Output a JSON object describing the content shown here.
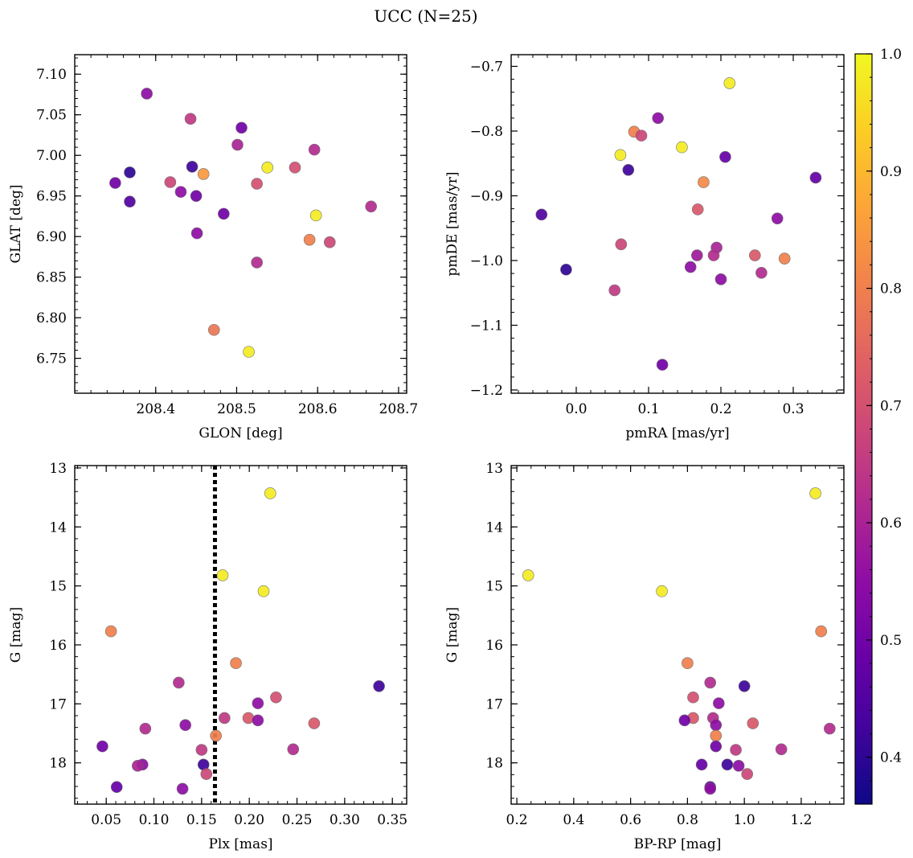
{
  "title": "UCC (N=25)",
  "colormap": "plasma",
  "colorbar": {
    "range": [
      0.36,
      1.0
    ],
    "ticks": [
      0.4,
      0.5,
      0.6,
      0.7,
      0.8,
      0.9,
      1.0
    ],
    "tick_labels": [
      "0.4",
      "0.5",
      "0.6",
      "0.7",
      "0.8",
      "0.9",
      "1.0"
    ]
  },
  "chart_data": [
    {
      "type": "scatter",
      "xlabel": "GLON [deg]",
      "ylabel": "GLAT [deg]",
      "xlim": [
        208.3,
        208.71
      ],
      "ylim": [
        6.707,
        7.124
      ],
      "xticks": [
        208.4,
        208.5,
        208.6,
        208.7
      ],
      "xtick_labels": [
        "208.4",
        "208.5",
        "208.6",
        "208.7"
      ],
      "yticks": [
        6.75,
        6.8,
        6.85,
        6.9,
        6.95,
        7.0,
        7.05,
        7.1
      ],
      "ytick_labels": [
        "6.75",
        "6.80",
        "6.85",
        "6.90",
        "6.95",
        "7.00",
        "7.05",
        "7.10"
      ],
      "invert_y": false,
      "grid": false,
      "points": [
        {
          "x": 208.389,
          "y": 7.076,
          "c": 0.55
        },
        {
          "x": 208.443,
          "y": 7.045,
          "c": 0.65
        },
        {
          "x": 208.506,
          "y": 7.034,
          "c": 0.5
        },
        {
          "x": 208.501,
          "y": 7.013,
          "c": 0.6
        },
        {
          "x": 208.596,
          "y": 7.007,
          "c": 0.62
        },
        {
          "x": 208.572,
          "y": 6.985,
          "c": 0.7
        },
        {
          "x": 208.445,
          "y": 6.986,
          "c": 0.42
        },
        {
          "x": 208.538,
          "y": 6.985,
          "c": 0.98
        },
        {
          "x": 208.368,
          "y": 6.979,
          "c": 0.4
        },
        {
          "x": 208.459,
          "y": 6.977,
          "c": 0.85
        },
        {
          "x": 208.35,
          "y": 6.966,
          "c": 0.5
        },
        {
          "x": 208.418,
          "y": 6.967,
          "c": 0.68
        },
        {
          "x": 208.525,
          "y": 6.965,
          "c": 0.7
        },
        {
          "x": 208.431,
          "y": 6.955,
          "c": 0.55
        },
        {
          "x": 208.45,
          "y": 6.95,
          "c": 0.5
        },
        {
          "x": 208.368,
          "y": 6.943,
          "c": 0.45
        },
        {
          "x": 208.666,
          "y": 6.937,
          "c": 0.62
        },
        {
          "x": 208.484,
          "y": 6.928,
          "c": 0.5
        },
        {
          "x": 208.598,
          "y": 6.926,
          "c": 0.98
        },
        {
          "x": 208.451,
          "y": 6.904,
          "c": 0.55
        },
        {
          "x": 208.59,
          "y": 6.896,
          "c": 0.8
        },
        {
          "x": 208.615,
          "y": 6.893,
          "c": 0.68
        },
        {
          "x": 208.525,
          "y": 6.868,
          "c": 0.62
        },
        {
          "x": 208.472,
          "y": 6.785,
          "c": 0.78
        },
        {
          "x": 208.515,
          "y": 6.758,
          "c": 0.98
        }
      ]
    },
    {
      "type": "scatter",
      "xlabel": "pmRA [mas/yr]",
      "ylabel": "pmDE [mas/yr]",
      "xlim": [
        -0.09,
        0.37
      ],
      "ylim": [
        -1.205,
        -0.682
      ],
      "xticks": [
        0.0,
        0.1,
        0.2,
        0.3
      ],
      "xtick_labels": [
        "0.0",
        "0.1",
        "0.2",
        "0.3"
      ],
      "yticks": [
        -1.2,
        -1.1,
        -1.0,
        -0.9,
        -0.8,
        -0.7
      ],
      "ytick_labels": [
        "−1.2",
        "−1.1",
        "−1.0",
        "−0.9",
        "−0.8",
        "−0.7"
      ],
      "invert_y": false,
      "grid": false,
      "points": [
        {
          "x": 0.212,
          "y": -0.726,
          "c": 0.98
        },
        {
          "x": 0.113,
          "y": -0.78,
          "c": 0.55
        },
        {
          "x": 0.08,
          "y": -0.801,
          "c": 0.8
        },
        {
          "x": 0.09,
          "y": -0.807,
          "c": 0.68
        },
        {
          "x": 0.146,
          "y": -0.825,
          "c": 0.98
        },
        {
          "x": 0.061,
          "y": -0.837,
          "c": 0.98
        },
        {
          "x": 0.206,
          "y": -0.84,
          "c": 0.48
        },
        {
          "x": 0.072,
          "y": -0.86,
          "c": 0.42
        },
        {
          "x": 0.331,
          "y": -0.872,
          "c": 0.48
        },
        {
          "x": 0.176,
          "y": -0.879,
          "c": 0.82
        },
        {
          "x": 0.168,
          "y": -0.921,
          "c": 0.72
        },
        {
          "x": -0.048,
          "y": -0.929,
          "c": 0.45
        },
        {
          "x": 0.278,
          "y": -0.935,
          "c": 0.55
        },
        {
          "x": 0.062,
          "y": -0.975,
          "c": 0.68
        },
        {
          "x": 0.194,
          "y": -0.98,
          "c": 0.6
        },
        {
          "x": 0.167,
          "y": -0.992,
          "c": 0.58
        },
        {
          "x": 0.19,
          "y": -0.992,
          "c": 0.62
        },
        {
          "x": 0.247,
          "y": -0.992,
          "c": 0.72
        },
        {
          "x": 0.288,
          "y": -0.997,
          "c": 0.8
        },
        {
          "x": 0.158,
          "y": -1.01,
          "c": 0.55
        },
        {
          "x": -0.014,
          "y": -1.014,
          "c": 0.4
        },
        {
          "x": 0.256,
          "y": -1.019,
          "c": 0.62
        },
        {
          "x": 0.2,
          "y": -1.029,
          "c": 0.55
        },
        {
          "x": 0.053,
          "y": -1.046,
          "c": 0.65
        },
        {
          "x": 0.119,
          "y": -1.161,
          "c": 0.5
        }
      ]
    },
    {
      "type": "scatter",
      "xlabel": "Plx [mas]",
      "ylabel": "G [mag]",
      "xlim": [
        0.017,
        0.365
      ],
      "ylim": [
        18.7,
        12.96
      ],
      "xticks": [
        0.05,
        0.1,
        0.15,
        0.2,
        0.25,
        0.3,
        0.35
      ],
      "xtick_labels": [
        "0.05",
        "0.10",
        "0.15",
        "0.20",
        "0.25",
        "0.30",
        "0.35"
      ],
      "yticks": [
        13,
        14,
        15,
        16,
        17,
        18
      ],
      "ytick_labels": [
        "13",
        "14",
        "15",
        "16",
        "17",
        "18"
      ],
      "invert_y": true,
      "grid": false,
      "vline": {
        "x": 0.164,
        "style": "dotted",
        "color": "#000000"
      },
      "points": [
        {
          "x": 0.222,
          "y": 13.43,
          "c": 0.98
        },
        {
          "x": 0.172,
          "y": 14.82,
          "c": 0.98
        },
        {
          "x": 0.215,
          "y": 15.09,
          "c": 0.98
        },
        {
          "x": 0.055,
          "y": 15.77,
          "c": 0.8
        },
        {
          "x": 0.186,
          "y": 16.31,
          "c": 0.8
        },
        {
          "x": 0.126,
          "y": 16.64,
          "c": 0.62
        },
        {
          "x": 0.336,
          "y": 16.7,
          "c": 0.42
        },
        {
          "x": 0.228,
          "y": 16.89,
          "c": 0.7
        },
        {
          "x": 0.209,
          "y": 16.99,
          "c": 0.55
        },
        {
          "x": 0.174,
          "y": 17.24,
          "c": 0.65
        },
        {
          "x": 0.199,
          "y": 17.24,
          "c": 0.72
        },
        {
          "x": 0.209,
          "y": 17.28,
          "c": 0.55
        },
        {
          "x": 0.268,
          "y": 17.33,
          "c": 0.72
        },
        {
          "x": 0.133,
          "y": 17.36,
          "c": 0.55
        },
        {
          "x": 0.091,
          "y": 17.42,
          "c": 0.62
        },
        {
          "x": 0.165,
          "y": 17.54,
          "c": 0.8
        },
        {
          "x": 0.046,
          "y": 17.72,
          "c": 0.5
        },
        {
          "x": 0.15,
          "y": 17.78,
          "c": 0.65
        },
        {
          "x": 0.246,
          "y": 17.77,
          "c": 0.62
        },
        {
          "x": 0.152,
          "y": 18.03,
          "c": 0.42
        },
        {
          "x": 0.088,
          "y": 18.03,
          "c": 0.55
        },
        {
          "x": 0.083,
          "y": 18.05,
          "c": 0.6
        },
        {
          "x": 0.155,
          "y": 18.19,
          "c": 0.68
        },
        {
          "x": 0.061,
          "y": 18.41,
          "c": 0.48
        },
        {
          "x": 0.13,
          "y": 18.44,
          "c": 0.55
        }
      ]
    },
    {
      "type": "scatter",
      "xlabel": "BP-RP [mag]",
      "ylabel": "G [mag]",
      "xlim": [
        0.18,
        1.35
      ],
      "ylim": [
        18.7,
        12.96
      ],
      "xticks": [
        0.2,
        0.4,
        0.6,
        0.8,
        1.0,
        1.2
      ],
      "xtick_labels": [
        "0.2",
        "0.4",
        "0.6",
        "0.8",
        "1.0",
        "1.2"
      ],
      "yticks": [
        13,
        14,
        15,
        16,
        17,
        18
      ],
      "ytick_labels": [
        "13",
        "14",
        "15",
        "16",
        "17",
        "18"
      ],
      "invert_y": true,
      "grid": false,
      "points": [
        {
          "x": 1.25,
          "y": 13.43,
          "c": 0.98
        },
        {
          "x": 0.24,
          "y": 14.82,
          "c": 0.98
        },
        {
          "x": 0.71,
          "y": 15.09,
          "c": 0.98
        },
        {
          "x": 1.27,
          "y": 15.77,
          "c": 0.8
        },
        {
          "x": 0.8,
          "y": 16.31,
          "c": 0.8
        },
        {
          "x": 0.88,
          "y": 16.64,
          "c": 0.62
        },
        {
          "x": 1.0,
          "y": 16.7,
          "c": 0.42
        },
        {
          "x": 0.82,
          "y": 16.89,
          "c": 0.7
        },
        {
          "x": 0.91,
          "y": 16.99,
          "c": 0.55
        },
        {
          "x": 0.82,
          "y": 17.24,
          "c": 0.72
        },
        {
          "x": 0.89,
          "y": 17.24,
          "c": 0.62
        },
        {
          "x": 0.79,
          "y": 17.28,
          "c": 0.5
        },
        {
          "x": 1.03,
          "y": 17.33,
          "c": 0.72
        },
        {
          "x": 0.9,
          "y": 17.36,
          "c": 0.55
        },
        {
          "x": 1.3,
          "y": 17.42,
          "c": 0.62
        },
        {
          "x": 0.9,
          "y": 17.54,
          "c": 0.8
        },
        {
          "x": 0.9,
          "y": 17.72,
          "c": 0.5
        },
        {
          "x": 0.97,
          "y": 17.78,
          "c": 0.65
        },
        {
          "x": 1.13,
          "y": 17.77,
          "c": 0.62
        },
        {
          "x": 0.85,
          "y": 18.03,
          "c": 0.48
        },
        {
          "x": 0.94,
          "y": 18.03,
          "c": 0.42
        },
        {
          "x": 0.98,
          "y": 18.05,
          "c": 0.55
        },
        {
          "x": 1.01,
          "y": 18.19,
          "c": 0.68
        },
        {
          "x": 0.88,
          "y": 18.41,
          "c": 0.48
        },
        {
          "x": 0.88,
          "y": 18.44,
          "c": 0.55
        }
      ]
    }
  ]
}
